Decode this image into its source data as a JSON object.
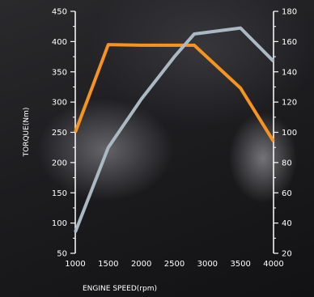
{
  "chart_data": {
    "type": "line",
    "x": [
      1000,
      1500,
      2000,
      2500,
      2800,
      3500,
      4000
    ],
    "xlim": [
      1000,
      4000
    ],
    "xticks": [
      1000,
      1500,
      2000,
      2500,
      3000,
      3500,
      4000
    ],
    "xlabel": "ENGINE SPEED(rpm)",
    "ylabel": "TORQUE(Nm)",
    "ylim": [
      50,
      450
    ],
    "yticks": [
      50,
      100,
      150,
      200,
      250,
      300,
      350,
      400,
      450
    ],
    "y2lim": [
      20,
      180
    ],
    "y2ticks": [
      20,
      40,
      60,
      80,
      100,
      120,
      140,
      160,
      180
    ],
    "grid": false,
    "series": [
      {
        "axis": "left",
        "color": "#f7941d",
        "points": [
          [
            1000,
            250
          ],
          [
            1500,
            395
          ],
          [
            2000,
            394
          ],
          [
            2500,
            394
          ],
          [
            2800,
            394
          ],
          [
            3500,
            323
          ],
          [
            4000,
            235
          ]
        ]
      },
      {
        "axis": "right",
        "color": "#a9bac4",
        "points": [
          [
            1000,
            34
          ],
          [
            1500,
            90
          ],
          [
            2000,
            122
          ],
          [
            2500,
            150
          ],
          [
            2800,
            165
          ],
          [
            3500,
            169
          ],
          [
            4000,
            147
          ]
        ]
      }
    ]
  }
}
